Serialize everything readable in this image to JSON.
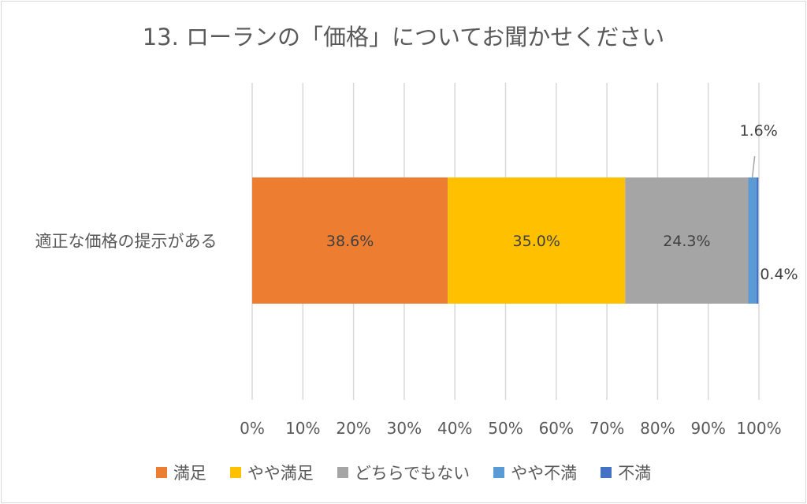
{
  "chart_data": {
    "type": "bar",
    "orientation": "horizontal",
    "stacked": "percent",
    "title": "13. ローランの「価格」についてお聞かせください",
    "categories": [
      "適正な価格の提示がある"
    ],
    "series": [
      {
        "name": "満足",
        "values": [
          38.6
        ],
        "label": "38.6%",
        "color": "#ED7D31"
      },
      {
        "name": "やや満足",
        "values": [
          35.0
        ],
        "label": "35.0%",
        "color": "#FFC000"
      },
      {
        "name": "どちらでもない",
        "values": [
          24.3
        ],
        "label": "24.3%",
        "color": "#A5A5A5"
      },
      {
        "name": "やや不満",
        "values": [
          1.6
        ],
        "label": "1.6%",
        "color": "#5B9BD5"
      },
      {
        "name": "不満",
        "values": [
          0.4
        ],
        "label": "0.4%",
        "color": "#4472C4"
      }
    ],
    "xlim": [
      0,
      100
    ],
    "xticks": [
      "0%",
      "10%",
      "20%",
      "30%",
      "40%",
      "50%",
      "60%",
      "70%",
      "80%",
      "90%",
      "100%"
    ],
    "grid": "vertical",
    "legend": "bottom"
  }
}
